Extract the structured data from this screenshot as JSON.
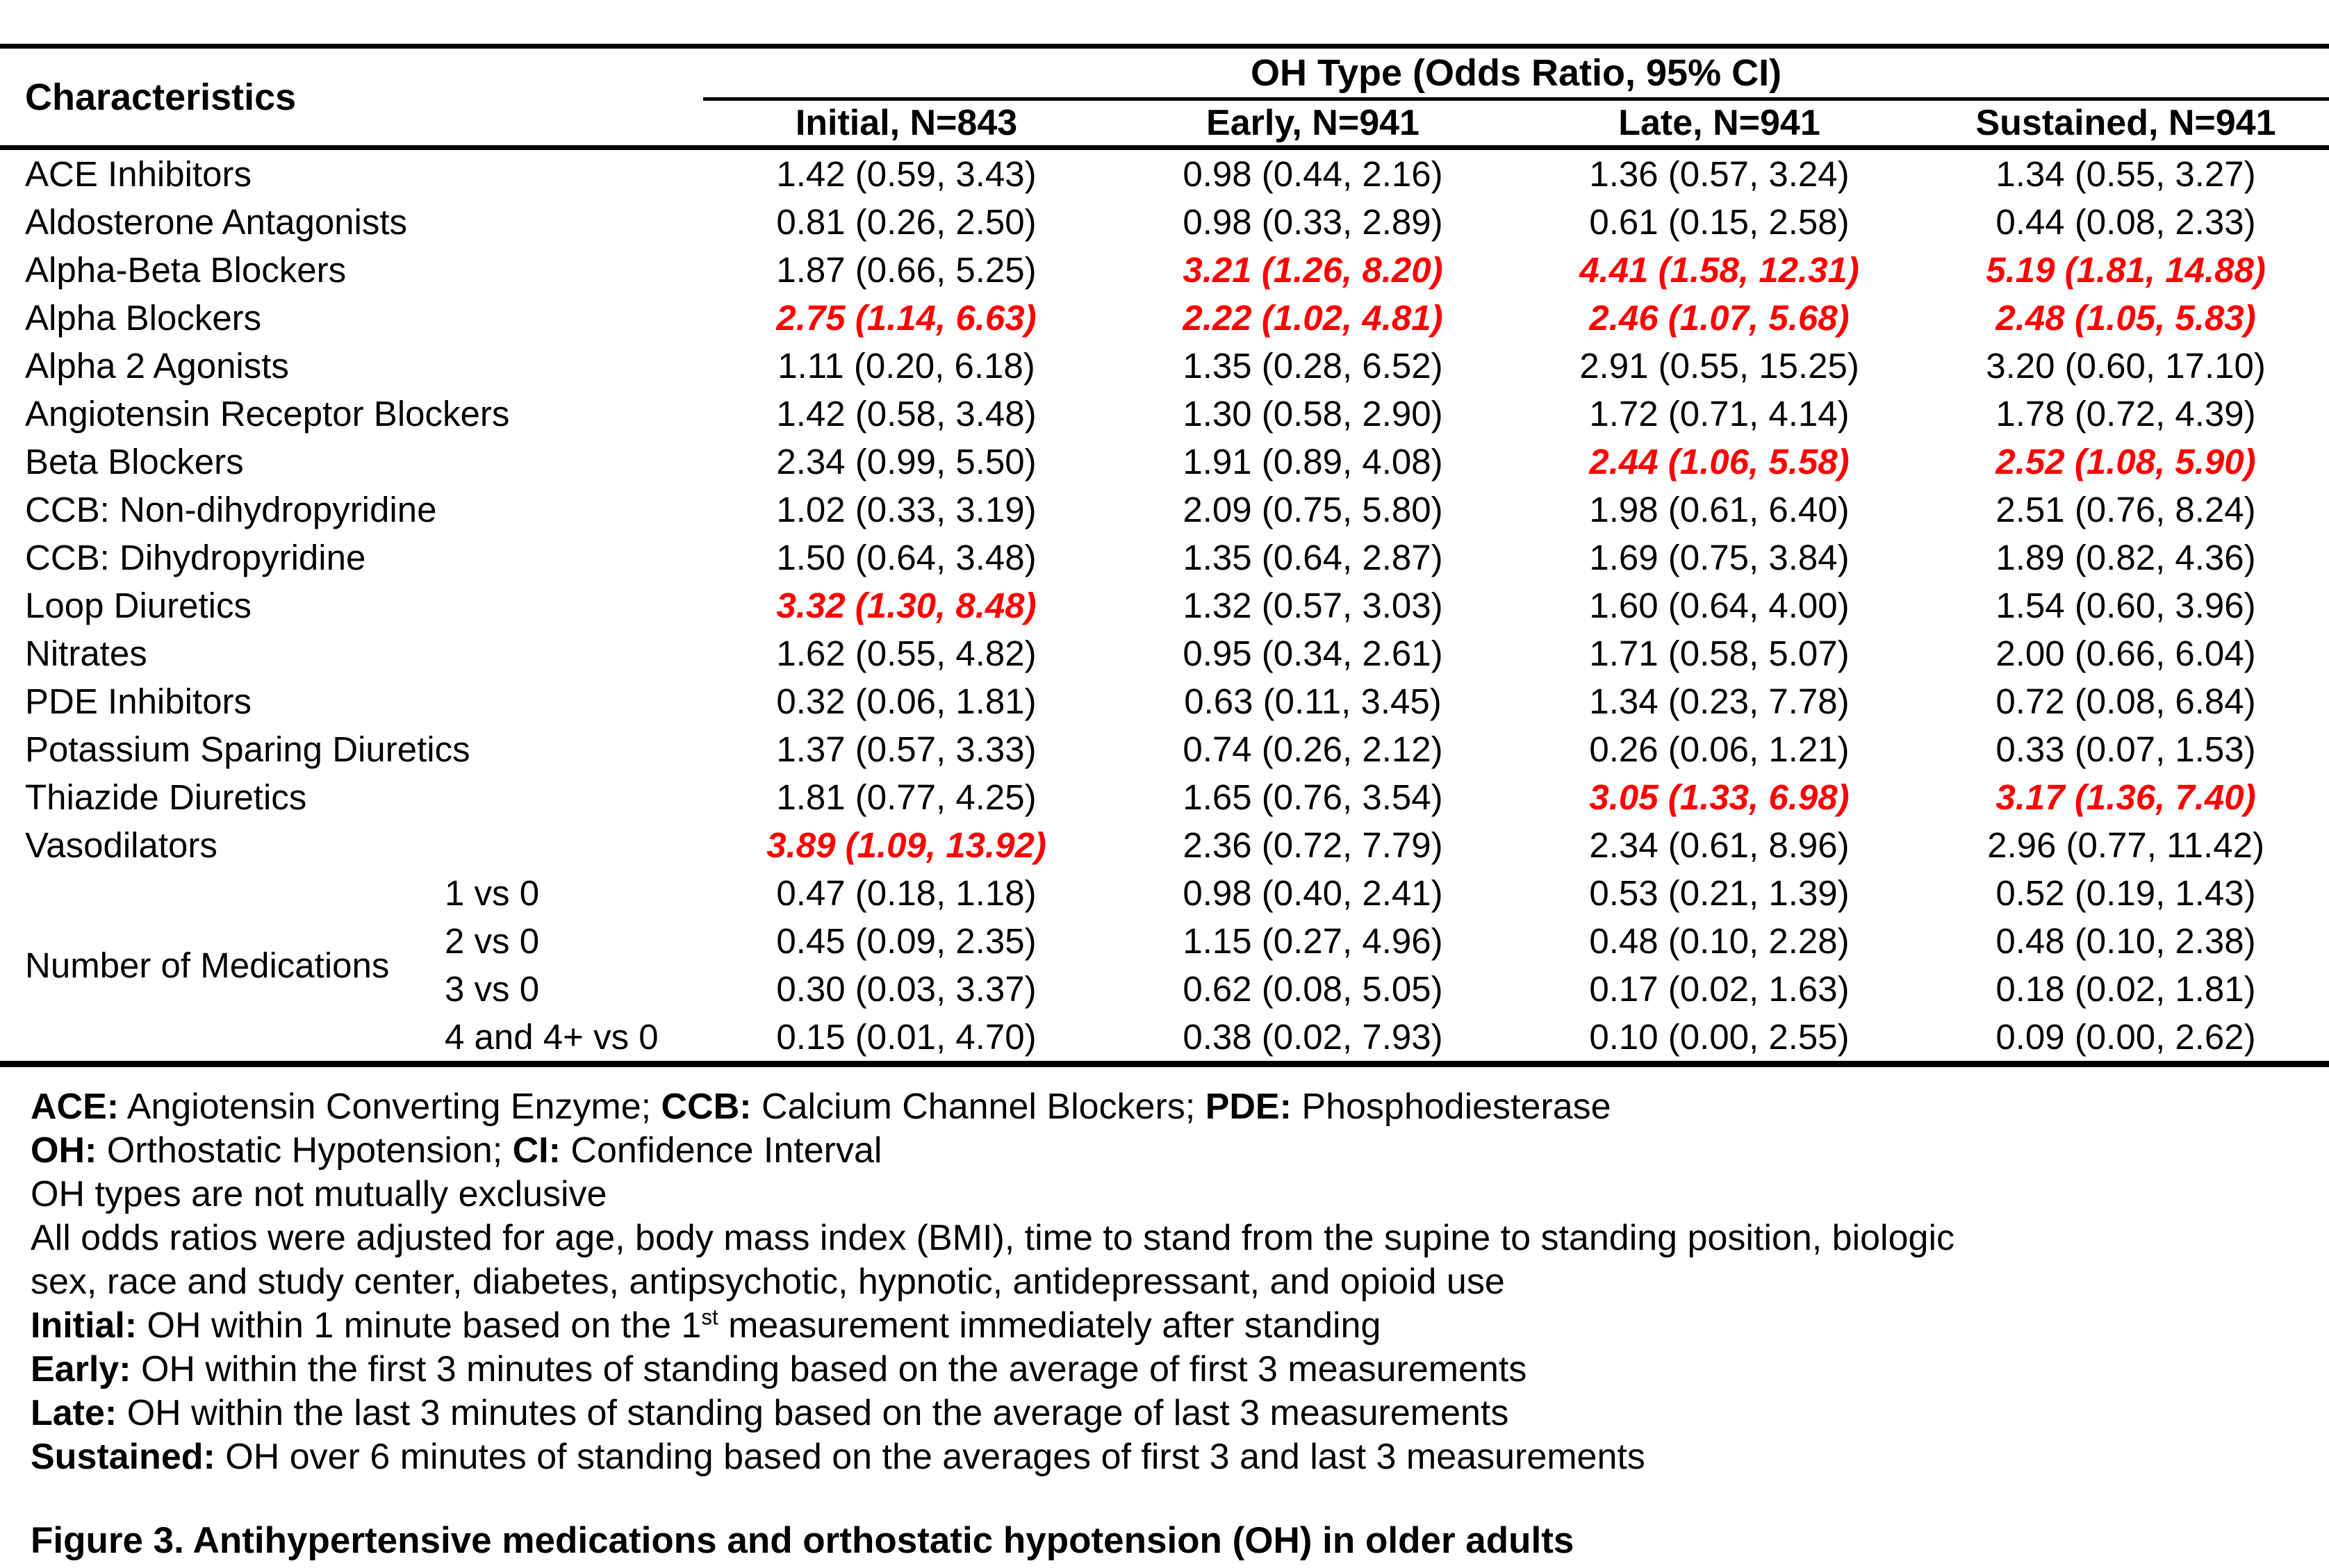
{
  "colors": {
    "highlight": "#ff0000",
    "text": "#000000",
    "background": "#ffffff"
  },
  "table": {
    "col1_header": "Characteristics",
    "group_header": "OH Type (Odds Ratio, 95% CI)",
    "columns": [
      "Initial, N=843",
      "Early, N=941",
      "Late, N=941",
      "Sustained, N=941"
    ],
    "group_label": "Number of Medications",
    "rows": [
      {
        "label": "ACE Inhibitors",
        "values": [
          {
            "t": "1.42 (0.59, 3.43)"
          },
          {
            "t": "0.98 (0.44, 2.16)"
          },
          {
            "t": "1.36 (0.57, 3.24)"
          },
          {
            "t": "1.34 (0.55, 3.27)"
          }
        ]
      },
      {
        "label": "Aldosterone Antagonists",
        "values": [
          {
            "t": "0.81 (0.26, 2.50)"
          },
          {
            "t": "0.98 (0.33, 2.89)"
          },
          {
            "t": "0.61 (0.15, 2.58)"
          },
          {
            "t": "0.44 (0.08, 2.33)"
          }
        ]
      },
      {
        "label": "Alpha-Beta Blockers",
        "values": [
          {
            "t": "1.87 (0.66, 5.25)"
          },
          {
            "t": "3.21 (1.26, 8.20)",
            "hl": true
          },
          {
            "t": "4.41 (1.58, 12.31)",
            "hl": true
          },
          {
            "t": "5.19 (1.81, 14.88)",
            "hl": true
          }
        ]
      },
      {
        "label": "Alpha Blockers",
        "values": [
          {
            "t": "2.75 (1.14, 6.63)",
            "hl": true
          },
          {
            "t": "2.22 (1.02, 4.81)",
            "hl": true
          },
          {
            "t": "2.46 (1.07, 5.68)",
            "hl": true
          },
          {
            "t": "2.48 (1.05, 5.83)",
            "hl": true
          }
        ]
      },
      {
        "label": "Alpha 2 Agonists",
        "values": [
          {
            "t": "1.11 (0.20, 6.18)"
          },
          {
            "t": "1.35 (0.28, 6.52)"
          },
          {
            "t": "2.91 (0.55, 15.25)"
          },
          {
            "t": "3.20 (0.60, 17.10)"
          }
        ]
      },
      {
        "label": "Angiotensin Receptor Blockers",
        "values": [
          {
            "t": "1.42 (0.58, 3.48)"
          },
          {
            "t": "1.30 (0.58, 2.90)"
          },
          {
            "t": "1.72 (0.71, 4.14)"
          },
          {
            "t": "1.78 (0.72, 4.39)"
          }
        ]
      },
      {
        "label": "Beta Blockers",
        "values": [
          {
            "t": "2.34 (0.99, 5.50)"
          },
          {
            "t": "1.91 (0.89, 4.08)"
          },
          {
            "t": "2.44 (1.06, 5.58)",
            "hl": true
          },
          {
            "t": "2.52 (1.08, 5.90)",
            "hl": true
          }
        ]
      },
      {
        "label": "CCB: Non-dihydropyridine",
        "values": [
          {
            "t": "1.02 (0.33, 3.19)"
          },
          {
            "t": "2.09 (0.75, 5.80)"
          },
          {
            "t": "1.98 (0.61, 6.40)"
          },
          {
            "t": "2.51 (0.76, 8.24)"
          }
        ]
      },
      {
        "label": "CCB: Dihydropyridine",
        "values": [
          {
            "t": "1.50 (0.64, 3.48)"
          },
          {
            "t": "1.35 (0.64, 2.87)"
          },
          {
            "t": "1.69 (0.75, 3.84)"
          },
          {
            "t": "1.89 (0.82, 4.36)"
          }
        ]
      },
      {
        "label": "Loop Diuretics",
        "values": [
          {
            "t": "3.32 (1.30, 8.48)",
            "hl": true
          },
          {
            "t": "1.32 (0.57, 3.03)"
          },
          {
            "t": "1.60 (0.64, 4.00)"
          },
          {
            "t": "1.54 (0.60, 3.96)"
          }
        ]
      },
      {
        "label": "Nitrates",
        "values": [
          {
            "t": "1.62 (0.55, 4.82)"
          },
          {
            "t": "0.95 (0.34, 2.61)"
          },
          {
            "t": "1.71 (0.58, 5.07)"
          },
          {
            "t": "2.00 (0.66, 6.04)"
          }
        ]
      },
      {
        "label": "PDE Inhibitors",
        "values": [
          {
            "t": "0.32 (0.06, 1.81)"
          },
          {
            "t": "0.63 (0.11, 3.45)"
          },
          {
            "t": "1.34 (0.23, 7.78)"
          },
          {
            "t": "0.72 (0.08, 6.84)"
          }
        ]
      },
      {
        "label": "Potassium Sparing Diuretics",
        "values": [
          {
            "t": "1.37 (0.57, 3.33)"
          },
          {
            "t": "0.74 (0.26, 2.12)"
          },
          {
            "t": "0.26 (0.06, 1.21)"
          },
          {
            "t": "0.33 (0.07, 1.53)"
          }
        ]
      },
      {
        "label": "Thiazide Diuretics",
        "values": [
          {
            "t": "1.81 (0.77, 4.25)"
          },
          {
            "t": "1.65 (0.76, 3.54)"
          },
          {
            "t": "3.05 (1.33, 6.98)",
            "hl": true
          },
          {
            "t": "3.17 (1.36, 7.40)",
            "hl": true
          }
        ]
      },
      {
        "label": "Vasodilators",
        "values": [
          {
            "t": "3.89 (1.09, 13.92)",
            "hl": true
          },
          {
            "t": "2.36 (0.72, 7.79)"
          },
          {
            "t": "2.34 (0.61, 8.96)"
          },
          {
            "t": "2.96 (0.77, 11.42)"
          }
        ]
      },
      {
        "sub": "1 vs 0",
        "values": [
          {
            "t": "0.47 (0.18, 1.18)"
          },
          {
            "t": "0.98 (0.40, 2.41)"
          },
          {
            "t": "0.53 (0.21, 1.39)"
          },
          {
            "t": "0.52 (0.19, 1.43)"
          }
        ]
      },
      {
        "sub": "2 vs 0",
        "values": [
          {
            "t": "0.45 (0.09, 2.35)"
          },
          {
            "t": "1.15 (0.27, 4.96)"
          },
          {
            "t": "0.48 (0.10, 2.28)"
          },
          {
            "t": "0.48 (0.10, 2.38)"
          }
        ]
      },
      {
        "sub": "3 vs 0",
        "values": [
          {
            "t": "0.30 (0.03, 3.37)"
          },
          {
            "t": "0.62 (0.08, 5.05)"
          },
          {
            "t": "0.17 (0.02, 1.63)"
          },
          {
            "t": "0.18 (0.02, 1.81)"
          }
        ]
      },
      {
        "sub": "4 and 4+ vs 0",
        "values": [
          {
            "t": "0.15 (0.01, 4.70)"
          },
          {
            "t": "0.38 (0.02, 7.93)"
          },
          {
            "t": "0.10 (0.00, 2.55)"
          },
          {
            "t": "0.09 (0.00, 2.62)"
          }
        ]
      }
    ]
  },
  "footnotes": [
    [
      {
        "b": "ACE:"
      },
      {
        "t": " Angiotensin Converting Enzyme; "
      },
      {
        "b": "CCB:"
      },
      {
        "t": " Calcium Channel Blockers; "
      },
      {
        "b": "PDE:"
      },
      {
        "t": " Phosphodiesterase"
      }
    ],
    [
      {
        "b": "OH:"
      },
      {
        "t": " Orthostatic Hypotension; "
      },
      {
        "b": "CI:"
      },
      {
        "t": " Confidence Interval"
      }
    ],
    [
      {
        "t": "OH types are not mutually exclusive"
      }
    ],
    [
      {
        "t": "All odds ratios were adjusted for age, body mass index (BMI), time to stand from the supine to standing position, biologic"
      }
    ],
    [
      {
        "t": "sex, race and study center, diabetes, antipsychotic, hypnotic, antidepressant, and opioid use"
      }
    ],
    [
      {
        "b": "Initial:"
      },
      {
        "t": " OH within 1 minute based on the 1"
      },
      {
        "sup": "st"
      },
      {
        "t": " measurement immediately after standing"
      }
    ],
    [
      {
        "b": "Early:"
      },
      {
        "t": " OH within the first 3 minutes of standing based on the average of first 3 measurements"
      }
    ],
    [
      {
        "b": "Late:"
      },
      {
        "t": " OH within the last 3 minutes of standing based on the average of last 3 measurements"
      }
    ],
    [
      {
        "b": "Sustained:"
      },
      {
        "t": " OH over 6 minutes of standing based on the averages of first 3 and last 3 measurements"
      }
    ]
  ],
  "caption": "Figure 3. Antihypertensive medications and orthostatic hypotension (OH) in older adults"
}
